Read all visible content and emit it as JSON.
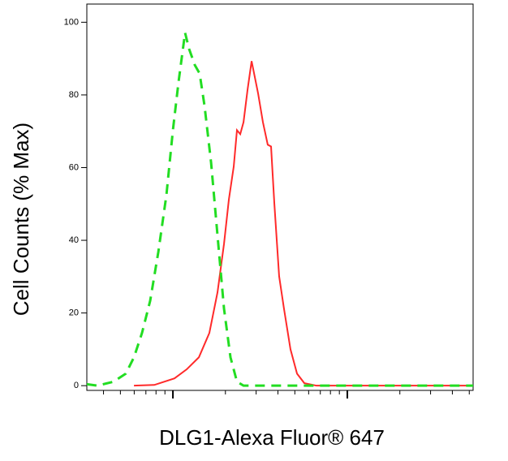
{
  "chart_data": {
    "type": "line",
    "x_label": "DLG1-Alexa Fluor® 647",
    "y_label": "Cell Counts (% Max)",
    "xscale": "log",
    "xlim": [
      321,
      52600
    ],
    "xticks": [
      1000,
      10000
    ],
    "ylim": [
      -1.3,
      105
    ],
    "yticks": [
      0,
      20,
      40,
      60,
      80,
      100
    ],
    "series": [
      {
        "color": "#ff2a2a",
        "dashed": false,
        "x": [
          598,
          782,
          1021,
          1200,
          1409,
          1618,
          1802,
          1963,
          2094,
          2232,
          2329,
          2432,
          2540,
          2680,
          2826,
          2951,
          3079,
          3281,
          3497,
          3653,
          3814,
          4064,
          4332,
          4721,
          5148,
          5666,
          6653,
          9180,
          52600
        ],
        "values": [
          0,
          0.2,
          2,
          4.5,
          7.8,
          14.5,
          25.7,
          39,
          51.3,
          60.3,
          70.3,
          69.2,
          72.5,
          81.5,
          89.3,
          84.8,
          80.4,
          72.5,
          66.3,
          65.8,
          50.2,
          30.1,
          21.2,
          10,
          3.3,
          0.7,
          0,
          0,
          0
        ]
      },
      {
        "color": "#22dd22",
        "dashed": true,
        "x": [
          321,
          369,
          457,
          537,
          598,
          665,
          741,
          825,
          918,
          1000,
          1078,
          1174,
          1239,
          1336,
          1423,
          1518,
          1655,
          1802,
          1963,
          2138,
          2329,
          2540,
          52600
        ],
        "values": [
          0.4,
          0,
          1.1,
          3.3,
          7.8,
          14.5,
          23.4,
          36.8,
          52.5,
          70.3,
          83.7,
          97.1,
          92.6,
          88.2,
          85.9,
          77,
          61.4,
          41.3,
          21.2,
          7.8,
          1.1,
          0,
          0
        ]
      }
    ]
  }
}
